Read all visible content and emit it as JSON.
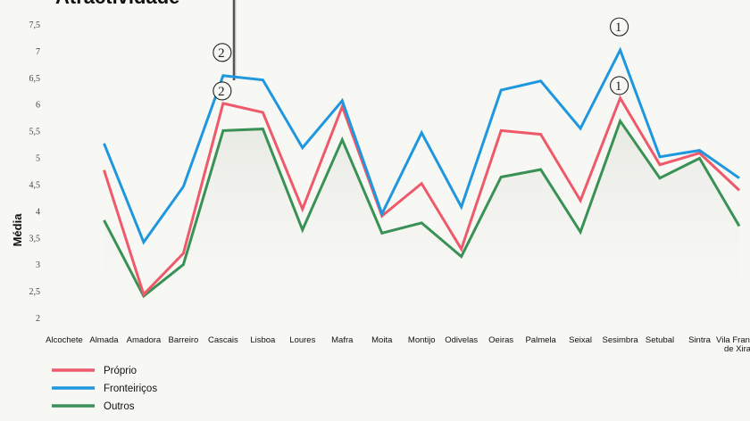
{
  "chart_data": {
    "type": "line",
    "title": "Atractividade",
    "ylabel": "Média",
    "xlabel": "",
    "ylim": [
      2,
      7.5
    ],
    "yticks": [
      "7,5",
      "7",
      "6,5",
      "6",
      "5,5",
      "5",
      "4,5",
      "4",
      "3,5",
      "3",
      "2,5",
      "2"
    ],
    "ytick_values": [
      7.5,
      7,
      6.5,
      6,
      5.5,
      5,
      4.5,
      4,
      3.5,
      3,
      2.5,
      2
    ],
    "categories": [
      "Alcochete",
      "Almada",
      "Amadora",
      "Barreiro",
      "Cascais",
      "Lisboa",
      "Loures",
      "Mafra",
      "Moita",
      "Montijo",
      "Odivelas",
      "Oeiras",
      "Palmela",
      "Seixal",
      "Sesimbra",
      "Setubal",
      "Sintra",
      "Vila Franca de Xira"
    ],
    "category_lines": [
      [
        "Alcochete"
      ],
      [
        "Almada"
      ],
      [
        "Amadora"
      ],
      [
        "Barreiro"
      ],
      [
        "Cascais"
      ],
      [
        "Lisboa"
      ],
      [
        "Loures"
      ],
      [
        "Mafra"
      ],
      [
        "Moita"
      ],
      [
        "Montijo"
      ],
      [
        "Odivelas"
      ],
      [
        "Oeiras"
      ],
      [
        "Palmela"
      ],
      [
        "Seixal"
      ],
      [
        "Sesimbra"
      ],
      [
        "Setubal"
      ],
      [
        "Sintra"
      ],
      [
        "Vila Franca",
        "de Xira"
      ]
    ],
    "grid": false,
    "legend_position": "bottom-left",
    "series": [
      {
        "name": "Próprio",
        "color": "#ee5a6a",
        "values": [
          null,
          4.78,
          2.45,
          3.22,
          6.03,
          5.86,
          4.05,
          5.97,
          3.92,
          4.53,
          3.3,
          5.52,
          5.45,
          4.21,
          6.13,
          4.88,
          5.1,
          4.4
        ]
      },
      {
        "name": "Fronteiriços",
        "color": "#1f97de",
        "values": [
          null,
          5.28,
          3.43,
          4.47,
          6.55,
          6.47,
          5.2,
          6.08,
          3.96,
          5.48,
          4.09,
          6.28,
          6.45,
          5.56,
          7.03,
          5.03,
          5.15,
          4.63
        ]
      },
      {
        "name": "Outros",
        "color": "#3a9156",
        "values": [
          null,
          3.84,
          2.42,
          3.01,
          5.52,
          5.55,
          3.66,
          5.35,
          3.6,
          3.79,
          3.16,
          4.65,
          4.79,
          3.62,
          5.7,
          4.63,
          5.0,
          3.73
        ]
      }
    ],
    "annotations": [
      {
        "text": "2",
        "series": "Fronteiriços",
        "category": "Cascais"
      },
      {
        "text": "2",
        "series": "Próprio",
        "category": "Cascais"
      },
      {
        "text": "1",
        "series": "Fronteiriços",
        "category": "Sesimbra"
      },
      {
        "text": "1",
        "series": "Próprio",
        "category": "Sesimbra"
      }
    ]
  }
}
